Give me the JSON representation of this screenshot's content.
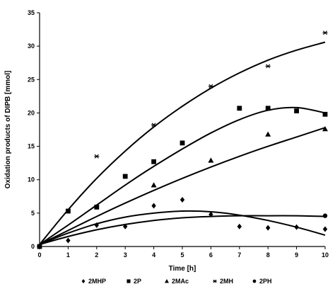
{
  "chart_data": {
    "type": "scatter",
    "xlabel": "Time [h]",
    "ylabel": "Oxidation products of DIPB [mmol]",
    "xlim": [
      0,
      10
    ],
    "ylim": [
      0,
      35
    ],
    "xticks": [
      "0",
      "1",
      "2",
      "3",
      "4",
      "5",
      "6",
      "7",
      "8",
      "9",
      "10"
    ],
    "yticks": [
      "0",
      "5",
      "10",
      "15",
      "20",
      "25",
      "30",
      "35"
    ],
    "grid": false,
    "legend_position": "bottom",
    "series": [
      {
        "name": "2MHP",
        "marker": "diamond",
        "points": [
          [
            0,
            0
          ],
          [
            1,
            0.9
          ],
          [
            2,
            3.2
          ],
          [
            3,
            3.0
          ],
          [
            4,
            6.1
          ],
          [
            5,
            7.0
          ],
          [
            6,
            4.8
          ],
          [
            7,
            3.0
          ],
          [
            8,
            2.8
          ],
          [
            9,
            2.9
          ],
          [
            10,
            2.6
          ]
        ],
        "fit": [
          [
            0,
            0.3
          ],
          [
            1,
            2.0
          ],
          [
            2,
            3.4
          ],
          [
            3,
            4.4
          ],
          [
            4,
            5.0
          ],
          [
            5,
            5.3
          ],
          [
            6,
            5.2
          ],
          [
            7,
            4.7
          ],
          [
            8,
            3.9
          ],
          [
            9,
            2.9
          ],
          [
            10,
            1.7
          ]
        ]
      },
      {
        "name": "2P",
        "marker": "square",
        "points": [
          [
            0,
            0
          ],
          [
            1,
            5.3
          ],
          [
            2,
            5.9
          ],
          [
            3,
            10.5
          ],
          [
            4,
            12.7
          ],
          [
            5,
            15.5
          ],
          [
            7,
            20.7
          ],
          [
            8,
            20.7
          ],
          [
            9,
            20.3
          ],
          [
            10,
            19.8
          ]
        ],
        "fit": [
          [
            0,
            0.3
          ],
          [
            1,
            3.2
          ],
          [
            2,
            6.2
          ],
          [
            3,
            9.2
          ],
          [
            4,
            12.0
          ],
          [
            5,
            14.6
          ],
          [
            6,
            17.0
          ],
          [
            7,
            19.0
          ],
          [
            8,
            20.4
          ],
          [
            9,
            20.8
          ],
          [
            10,
            20.0
          ]
        ]
      },
      {
        "name": "2MAc",
        "marker": "triangle",
        "points": [
          [
            4,
            9.2
          ],
          [
            6,
            12.9
          ],
          [
            8,
            16.8
          ],
          [
            10,
            17.6
          ]
        ],
        "fit": [
          [
            0,
            0.3
          ],
          [
            1,
            2.4
          ],
          [
            2,
            4.5
          ],
          [
            3,
            6.5
          ],
          [
            4,
            8.4
          ],
          [
            5,
            10.2
          ],
          [
            6,
            11.9
          ],
          [
            7,
            13.5
          ],
          [
            8,
            15.0
          ],
          [
            9,
            16.4
          ],
          [
            10,
            17.8
          ]
        ]
      },
      {
        "name": "2MH",
        "marker": "asterisk",
        "points": [
          [
            2,
            13.5
          ],
          [
            4,
            18.2
          ],
          [
            6,
            24.0
          ],
          [
            8,
            27.0
          ],
          [
            10,
            32.0
          ]
        ],
        "fit": [
          [
            0,
            0.3
          ],
          [
            1,
            5.5
          ],
          [
            2,
            10.2
          ],
          [
            3,
            14.3
          ],
          [
            4,
            17.9
          ],
          [
            5,
            21.0
          ],
          [
            6,
            23.7
          ],
          [
            7,
            26.0
          ],
          [
            8,
            27.9
          ],
          [
            9,
            29.4
          ],
          [
            10,
            30.6
          ]
        ]
      },
      {
        "name": "2PH",
        "marker": "circle",
        "points": [
          [
            10,
            4.6
          ]
        ],
        "fit": [
          [
            0,
            0.3
          ],
          [
            1,
            1.5
          ],
          [
            2,
            2.5
          ],
          [
            3,
            3.3
          ],
          [
            4,
            3.9
          ],
          [
            5,
            4.3
          ],
          [
            6,
            4.5
          ],
          [
            7,
            4.6
          ],
          [
            8,
            4.6
          ],
          [
            9,
            4.6
          ],
          [
            10,
            4.5
          ]
        ]
      }
    ]
  }
}
